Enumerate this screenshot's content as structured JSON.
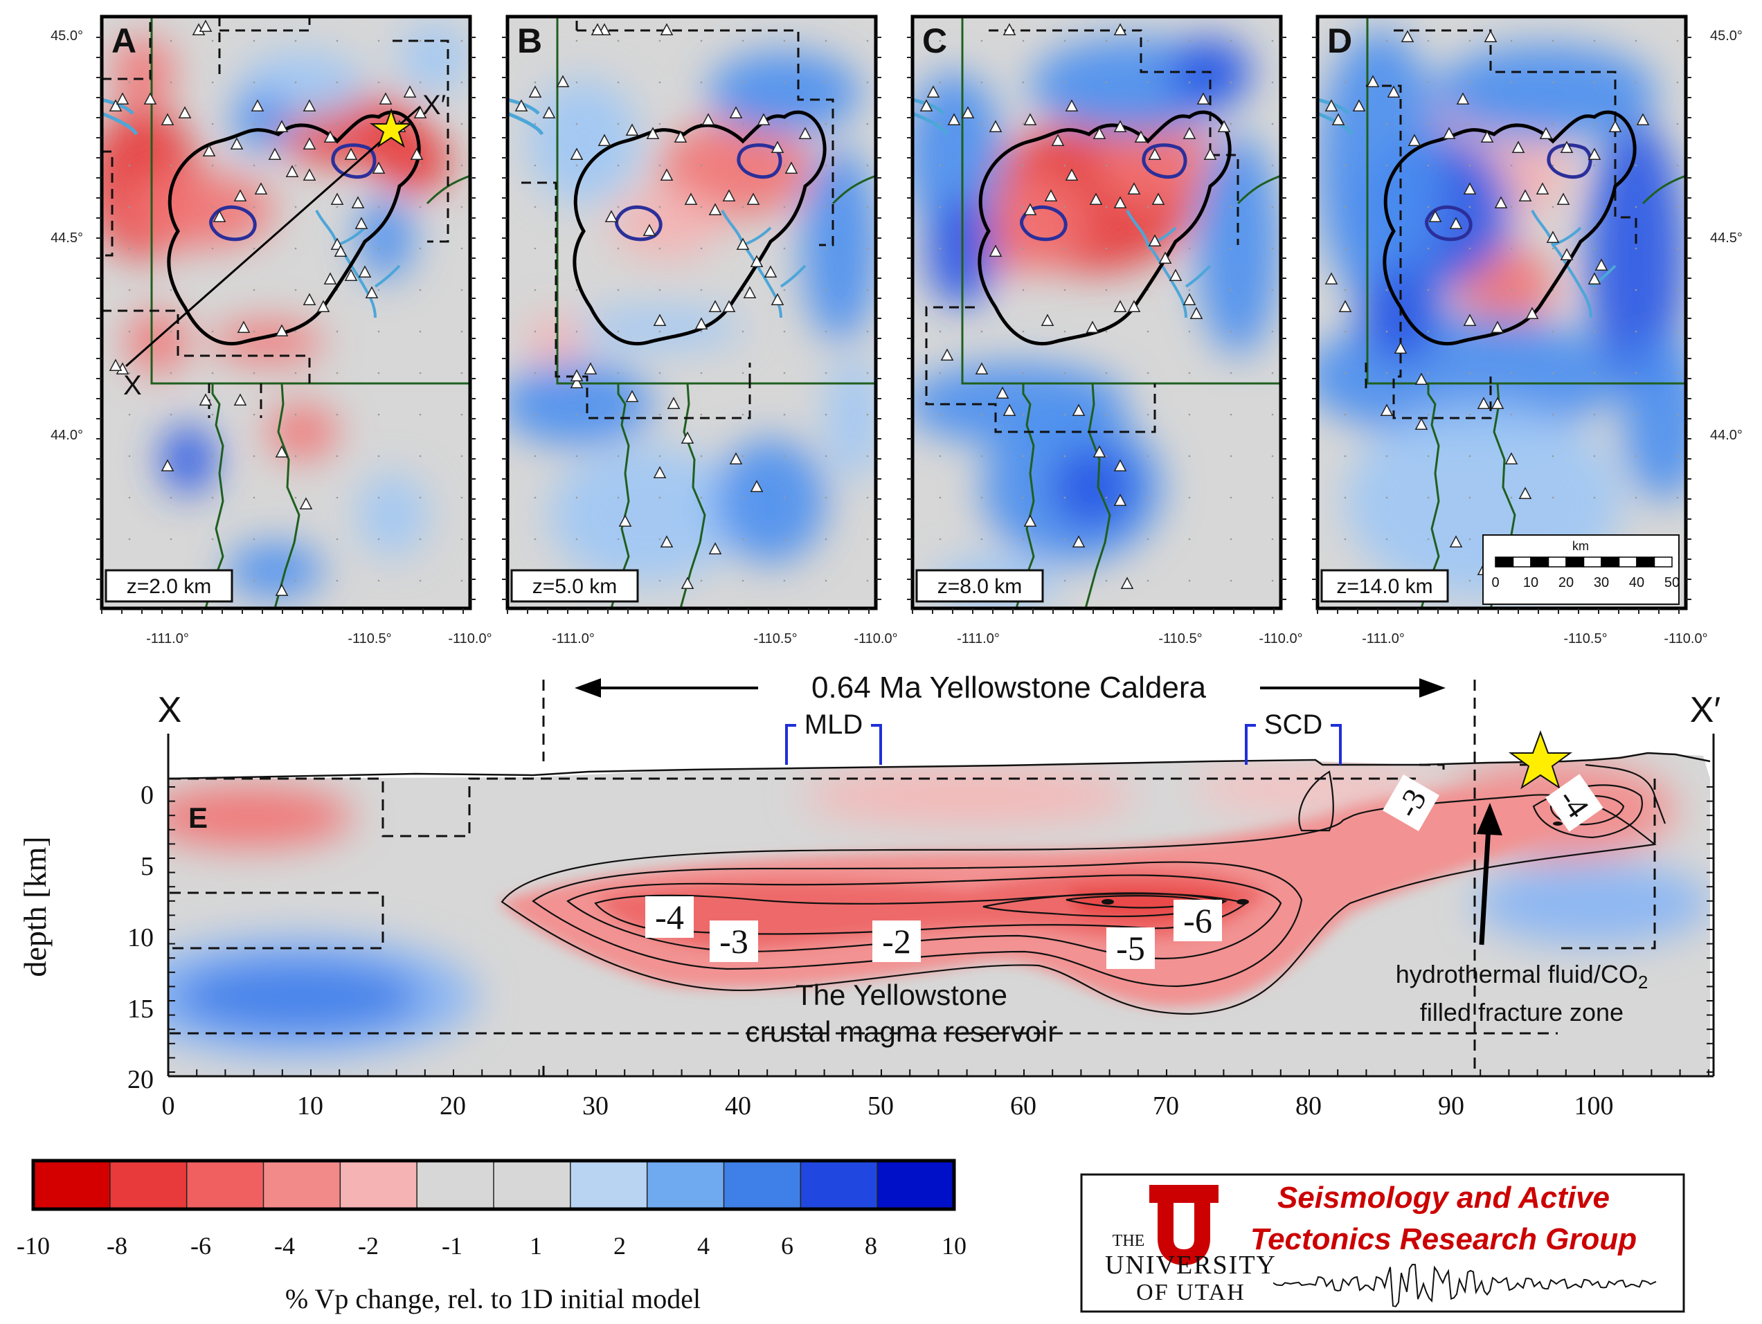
{
  "colors": {
    "neutral": "#d7d7d7",
    "red_strong": "#e83a3a",
    "red_mid": "#f27474",
    "red_light": "#f5b3b3",
    "blue_strong": "#2a57e6",
    "blue_mid": "#4a8ff0",
    "blue_light": "#9fc6f5",
    "caldera_outline": "#000000",
    "dome_outline": "#2b2f9a",
    "lake": "#4da6d8",
    "park_boundary": "#1f5f1f",
    "star": "#ffee00",
    "utah_red": "#cc0000"
  },
  "map_panels": [
    {
      "letter": "A",
      "depth_label": "z=2.0 km"
    },
    {
      "letter": "B",
      "depth_label": "z=5.0 km"
    },
    {
      "letter": "C",
      "depth_label": "z=8.0 km"
    },
    {
      "letter": "D",
      "depth_label": "z=14.0 km"
    }
  ],
  "lat_ticks": [
    "45.0°",
    "44.5°",
    "44.0°"
  ],
  "lon_ticks": [
    "-111.0°",
    "-110.5°",
    "-110.0°"
  ],
  "profile_endpoints": {
    "start": "X",
    "end": "X′"
  },
  "scale_bar": {
    "unit": "km",
    "ticks": [
      "0",
      "10",
      "20",
      "30",
      "40",
      "50"
    ]
  },
  "cross_section": {
    "panel_letter": "E",
    "caldera_label": "0.64 Ma Yellowstone Caldera",
    "dome_labels": [
      "MLD",
      "SCD"
    ],
    "ylabel": "depth [km]",
    "y_ticks": [
      "0",
      "5",
      "10",
      "15",
      "20"
    ],
    "x_ticks": [
      "0",
      "10",
      "20",
      "30",
      "40",
      "50",
      "60",
      "70",
      "80",
      "90",
      "100"
    ],
    "contour_labels": [
      "-4",
      "-3",
      "-2",
      "-5",
      "-6",
      "-3",
      "-4"
    ],
    "reservoir_label_line1": "The Yellowstone",
    "reservoir_label_line2": "crustal magma reservoir",
    "fracture_label_line1": "hydrothermal fluid/CO",
    "fracture_label_sub": "2",
    "fracture_label_line2": "filled fracture zone"
  },
  "colorbar": {
    "tick_labels": [
      "-10",
      "-8",
      "-6",
      "-4",
      "-2",
      "-1",
      "1",
      "2",
      "4",
      "6",
      "8",
      "10"
    ],
    "label": "% Vp change, rel. to 1D initial model",
    "colors": [
      "#d40000",
      "#e83a3a",
      "#f06060",
      "#f38a8a",
      "#f5b3b3",
      "#d7d7d7",
      "#d7d7d7",
      "#b9d4f3",
      "#6fa9f0",
      "#3f7fe8",
      "#2048e0",
      "#0010c8"
    ]
  },
  "logo": {
    "the": "THE",
    "university": "UNIVERSITY",
    "of_utah": "OF UTAH",
    "letter": "U",
    "group_line1": "Seismology and Active",
    "group_line2": "Tectonics Research Group"
  }
}
